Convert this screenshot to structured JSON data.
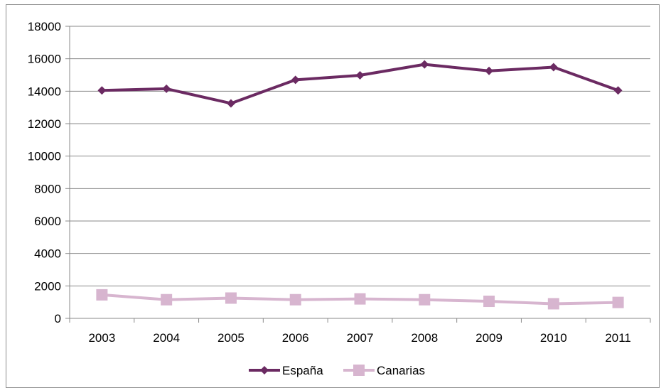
{
  "chart_data": {
    "type": "line",
    "categories": [
      "2003",
      "2004",
      "2005",
      "2006",
      "2007",
      "2008",
      "2009",
      "2010",
      "2011"
    ],
    "series": [
      {
        "name": "España",
        "values": [
          14050,
          14150,
          13250,
          14700,
          14980,
          15650,
          15250,
          15480,
          14050
        ],
        "color": "#6b2a62",
        "marker": "diamond"
      },
      {
        "name": "Canarias",
        "values": [
          1450,
          1150,
          1250,
          1150,
          1200,
          1150,
          1050,
          900,
          980
        ],
        "color": "#d7b5cf",
        "marker": "square"
      }
    ],
    "ylim": [
      0,
      18000
    ],
    "yticks": [
      0,
      2000,
      4000,
      6000,
      8000,
      10000,
      12000,
      14000,
      16000,
      18000
    ],
    "grid": true,
    "legend": "bottom",
    "title": "",
    "xlabel": "",
    "ylabel": ""
  }
}
